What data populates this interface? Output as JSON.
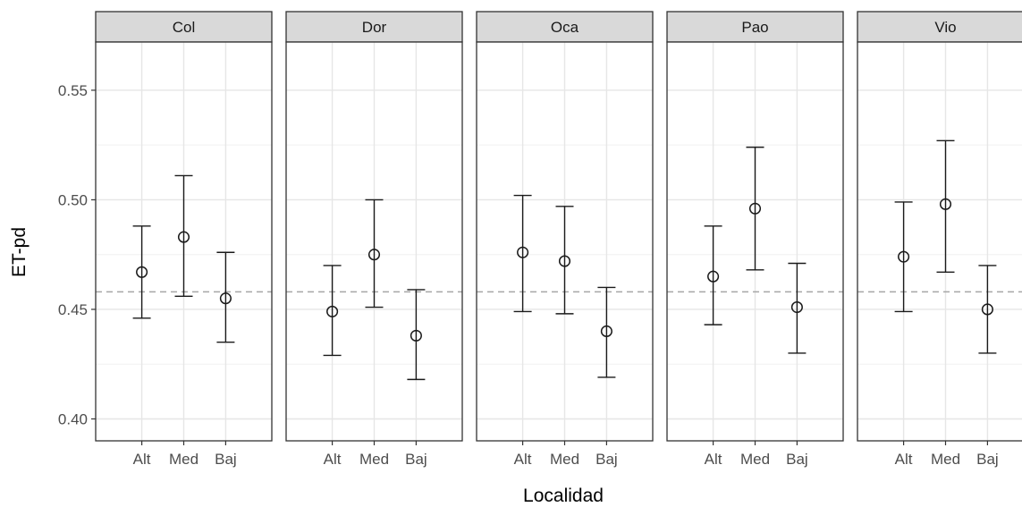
{
  "chart_data": {
    "type": "scatter",
    "subtype": "point-with-errorbars, faceted",
    "xlabel": "Localidad",
    "ylabel": "ET-pd",
    "ylim": [
      0.39,
      0.572
    ],
    "yticks": [
      0.4,
      0.45,
      0.5,
      0.55
    ],
    "ytick_labels": [
      "0.40",
      "0.45",
      "0.50",
      "0.55"
    ],
    "categories": [
      "Alt",
      "Med",
      "Baj"
    ],
    "reference_line": 0.458,
    "grid": true,
    "facets": [
      {
        "name": "Col",
        "points": [
          {
            "x": "Alt",
            "y": 0.467,
            "lower": 0.446,
            "upper": 0.488
          },
          {
            "x": "Med",
            "y": 0.483,
            "lower": 0.456,
            "upper": 0.511
          },
          {
            "x": "Baj",
            "y": 0.455,
            "lower": 0.435,
            "upper": 0.476
          }
        ]
      },
      {
        "name": "Dor",
        "points": [
          {
            "x": "Alt",
            "y": 0.449,
            "lower": 0.429,
            "upper": 0.47
          },
          {
            "x": "Med",
            "y": 0.475,
            "lower": 0.451,
            "upper": 0.5
          },
          {
            "x": "Baj",
            "y": 0.438,
            "lower": 0.418,
            "upper": 0.459
          }
        ]
      },
      {
        "name": "Oca",
        "points": [
          {
            "x": "Alt",
            "y": 0.476,
            "lower": 0.449,
            "upper": 0.502
          },
          {
            "x": "Med",
            "y": 0.472,
            "lower": 0.448,
            "upper": 0.497
          },
          {
            "x": "Baj",
            "y": 0.44,
            "lower": 0.419,
            "upper": 0.46
          }
        ]
      },
      {
        "name": "Pao",
        "points": [
          {
            "x": "Alt",
            "y": 0.465,
            "lower": 0.443,
            "upper": 0.488
          },
          {
            "x": "Med",
            "y": 0.496,
            "lower": 0.468,
            "upper": 0.524
          },
          {
            "x": "Baj",
            "y": 0.451,
            "lower": 0.43,
            "upper": 0.471
          }
        ]
      },
      {
        "name": "Vio",
        "points": [
          {
            "x": "Alt",
            "y": 0.474,
            "lower": 0.449,
            "upper": 0.499
          },
          {
            "x": "Med",
            "y": 0.498,
            "lower": 0.467,
            "upper": 0.527
          },
          {
            "x": "Baj",
            "y": 0.45,
            "lower": 0.43,
            "upper": 0.47
          }
        ]
      }
    ]
  }
}
